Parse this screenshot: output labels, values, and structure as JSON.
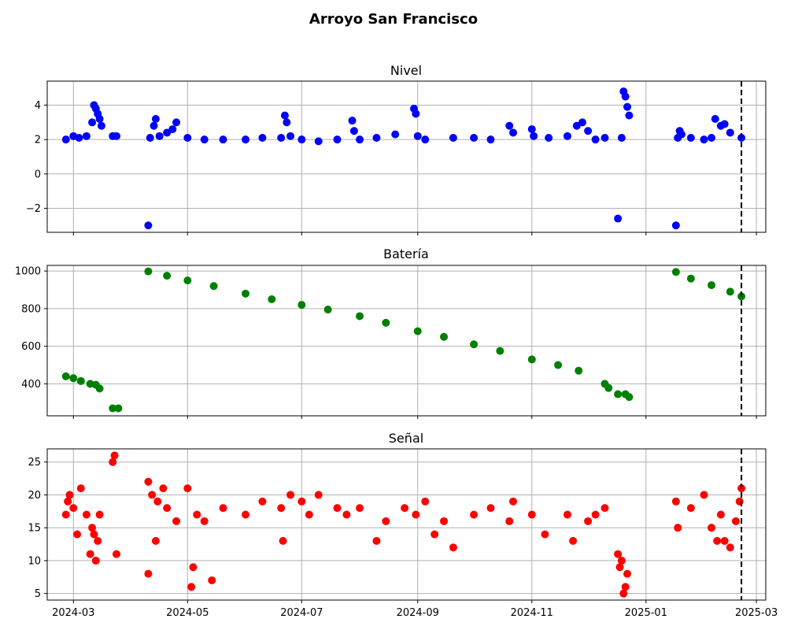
{
  "figure": {
    "title": "Arroyo San Francisco"
  },
  "chart_data": [
    {
      "type": "scatter",
      "title": "Nivel",
      "color": "#0000ff",
      "ylim": [
        -3.4,
        5.4
      ],
      "yticks": [
        -2,
        0,
        2,
        4
      ],
      "ytick_labels": [
        "−2",
        "0",
        "2",
        "4"
      ],
      "xlim": [
        "2024-02-16",
        "2025-03-06"
      ],
      "xticks": [
        "2024-03-01",
        "2024-05-01",
        "2024-07-01",
        "2024-09-01",
        "2024-11-01",
        "2025-01-01",
        "2025-03-01"
      ],
      "xtick_labels": [],
      "grid": true,
      "vline": "2025-02-21",
      "x": [
        "2024-02-26",
        "2024-03-01",
        "2024-03-04",
        "2024-03-08",
        "2024-03-11",
        "2024-03-12",
        "2024-03-13",
        "2024-03-14",
        "2024-03-15",
        "2024-03-16",
        "2024-03-22",
        "2024-03-24",
        "2024-04-10",
        "2024-04-11",
        "2024-04-13",
        "2024-04-14",
        "2024-04-16",
        "2024-04-20",
        "2024-04-23",
        "2024-04-25",
        "2024-05-01",
        "2024-05-10",
        "2024-05-20",
        "2024-06-01",
        "2024-06-10",
        "2024-06-20",
        "2024-06-22",
        "2024-06-23",
        "2024-06-25",
        "2024-07-01",
        "2024-07-10",
        "2024-07-20",
        "2024-07-28",
        "2024-07-29",
        "2024-08-01",
        "2024-08-10",
        "2024-08-20",
        "2024-08-30",
        "2024-08-31",
        "2024-09-01",
        "2024-09-05",
        "2024-09-20",
        "2024-10-01",
        "2024-10-10",
        "2024-10-20",
        "2024-10-22",
        "2024-11-01",
        "2024-11-02",
        "2024-11-10",
        "2024-11-20",
        "2024-11-25",
        "2024-11-28",
        "2024-12-01",
        "2024-12-05",
        "2024-12-10",
        "2024-12-17",
        "2024-12-19",
        "2024-12-20",
        "2024-12-21",
        "2024-12-22",
        "2024-12-23",
        "2025-01-17",
        "2025-01-18",
        "2025-01-19",
        "2025-01-20",
        "2025-01-25",
        "2025-02-01",
        "2025-02-05",
        "2025-02-07",
        "2025-02-10",
        "2025-02-12",
        "2025-02-15",
        "2025-02-21"
      ],
      "y": [
        2.0,
        2.2,
        2.1,
        2.2,
        3.0,
        4.0,
        3.8,
        3.5,
        3.2,
        2.8,
        2.2,
        2.2,
        -3.0,
        2.1,
        2.8,
        3.2,
        2.2,
        2.4,
        2.6,
        3.0,
        2.1,
        2.0,
        2.0,
        2.0,
        2.1,
        2.1,
        3.4,
        3.0,
        2.2,
        2.0,
        1.9,
        2.0,
        3.1,
        2.5,
        2.0,
        2.1,
        2.3,
        3.8,
        3.5,
        2.2,
        2.0,
        2.1,
        2.1,
        2.0,
        2.8,
        2.4,
        2.6,
        2.2,
        2.1,
        2.2,
        2.8,
        3.0,
        2.5,
        2.0,
        2.1,
        -2.6,
        2.1,
        4.8,
        4.5,
        3.9,
        3.4,
        -3.0,
        2.1,
        2.5,
        2.3,
        2.1,
        2.0,
        2.1,
        3.2,
        2.8,
        2.9,
        2.4,
        2.1
      ]
    },
    {
      "type": "scatter",
      "title": "Batería",
      "color": "#008000",
      "ylim": [
        230,
        1030
      ],
      "yticks": [
        400,
        600,
        800,
        1000
      ],
      "ytick_labels": [
        "400",
        "600",
        "800",
        "1000"
      ],
      "xlim": [
        "2024-02-16",
        "2025-03-06"
      ],
      "xticks": [
        "2024-03-01",
        "2024-05-01",
        "2024-07-01",
        "2024-09-01",
        "2024-11-01",
        "2025-01-01",
        "2025-03-01"
      ],
      "xtick_labels": [],
      "grid": true,
      "vline": "2025-02-21",
      "x": [
        "2024-02-26",
        "2024-03-01",
        "2024-03-05",
        "2024-03-10",
        "2024-03-13",
        "2024-03-15",
        "2024-03-22",
        "2024-03-25",
        "2024-04-10",
        "2024-04-20",
        "2024-05-01",
        "2024-05-15",
        "2024-06-01",
        "2024-06-15",
        "2024-07-01",
        "2024-07-15",
        "2024-08-01",
        "2024-08-15",
        "2024-09-01",
        "2024-09-15",
        "2024-10-01",
        "2024-10-15",
        "2024-11-01",
        "2024-11-15",
        "2024-11-26",
        "2024-12-10",
        "2024-12-12",
        "2024-12-17",
        "2024-12-21",
        "2024-12-23",
        "2025-01-17",
        "2025-01-25",
        "2025-02-05",
        "2025-02-15",
        "2025-02-21"
      ],
      "y": [
        440,
        430,
        415,
        400,
        395,
        375,
        270,
        270,
        998,
        975,
        950,
        920,
        880,
        850,
        820,
        795,
        760,
        725,
        680,
        650,
        610,
        575,
        530,
        500,
        470,
        400,
        378,
        345,
        345,
        330,
        995,
        960,
        925,
        890,
        865
      ]
    },
    {
      "type": "scatter",
      "title": "Señal",
      "color": "#ff0000",
      "ylim": [
        4,
        27
      ],
      "yticks": [
        5,
        10,
        15,
        20,
        25
      ],
      "ytick_labels": [
        "5",
        "10",
        "15",
        "20",
        "25"
      ],
      "xlim": [
        "2024-02-16",
        "2025-03-06"
      ],
      "xticks": [
        "2024-03-01",
        "2024-05-01",
        "2024-07-01",
        "2024-09-01",
        "2024-11-01",
        "2025-01-01",
        "2025-03-01"
      ],
      "xtick_labels": [
        "2024-03",
        "2024-05",
        "2024-07",
        "2024-09",
        "2024-11",
        "2025-01",
        "2025-03"
      ],
      "grid": true,
      "vline": "2025-02-21",
      "x": [
        "2024-02-26",
        "2024-02-27",
        "2024-02-28",
        "2024-03-01",
        "2024-03-03",
        "2024-03-05",
        "2024-03-08",
        "2024-03-10",
        "2024-03-11",
        "2024-03-12",
        "2024-03-13",
        "2024-03-14",
        "2024-03-15",
        "2024-03-22",
        "2024-03-23",
        "2024-03-24",
        "2024-04-10",
        "2024-04-10",
        "2024-04-12",
        "2024-04-14",
        "2024-04-15",
        "2024-04-18",
        "2024-04-20",
        "2024-04-25",
        "2024-05-01",
        "2024-05-03",
        "2024-05-04",
        "2024-05-06",
        "2024-05-10",
        "2024-05-14",
        "2024-05-20",
        "2024-06-01",
        "2024-06-10",
        "2024-06-20",
        "2024-06-21",
        "2024-06-25",
        "2024-07-01",
        "2024-07-05",
        "2024-07-10",
        "2024-07-20",
        "2024-07-25",
        "2024-08-01",
        "2024-08-10",
        "2024-08-15",
        "2024-08-25",
        "2024-08-31",
        "2024-09-05",
        "2024-09-10",
        "2024-09-15",
        "2024-09-20",
        "2024-10-01",
        "2024-10-10",
        "2024-10-20",
        "2024-10-22",
        "2024-11-01",
        "2024-11-08",
        "2024-11-20",
        "2024-11-23",
        "2024-12-01",
        "2024-12-05",
        "2024-12-10",
        "2024-12-17",
        "2024-12-18",
        "2024-12-19",
        "2024-12-20",
        "2024-12-21",
        "2024-12-22",
        "2025-01-17",
        "2025-01-18",
        "2025-01-25",
        "2025-02-01",
        "2025-02-05",
        "2025-02-08",
        "2025-02-10",
        "2025-02-12",
        "2025-02-15",
        "2025-02-18",
        "2025-02-20",
        "2025-02-21"
      ],
      "y": [
        17,
        19,
        20,
        18,
        14,
        21,
        17,
        11,
        15,
        14,
        10,
        13,
        17,
        25,
        26,
        11,
        8,
        22,
        20,
        13,
        19,
        21,
        18,
        16,
        21,
        6,
        9,
        17,
        16,
        7,
        18,
        17,
        19,
        18,
        13,
        20,
        19,
        17,
        20,
        18,
        17,
        18,
        13,
        16,
        18,
        17,
        19,
        14,
        16,
        12,
        17,
        18,
        16,
        19,
        17,
        14,
        17,
        13,
        16,
        17,
        18,
        11,
        9,
        10,
        5,
        6,
        8,
        19,
        15,
        18,
        20,
        15,
        13,
        17,
        13,
        12,
        16,
        19,
        21
      ]
    }
  ]
}
